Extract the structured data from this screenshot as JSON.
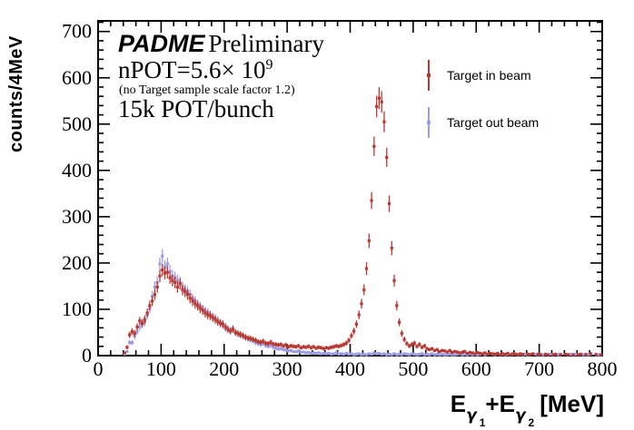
{
  "page": {
    "background": "#ffffff",
    "frame_color": "#000000"
  },
  "annotations": {
    "experiment": "PADME",
    "preliminary": "Preliminary",
    "npot_prefix": "nPOT=5.6× 10",
    "npot_exponent": "9",
    "scale_note": "(no Target sample scale factor 1.2)",
    "pot_per_bunch": "15k POT/bunch"
  },
  "legend": {
    "entries": [
      {
        "label": "Target in beam",
        "color": "#b93a32"
      },
      {
        "label": "Target out beam",
        "color": "#9d9de6"
      }
    ]
  },
  "axes": {
    "y_title": "counts/4MeV",
    "x_title_parts": {
      "e1": "E",
      "g1": "γ",
      "s1": "1",
      "plus": "+E",
      "g2": "γ",
      "s2": "2",
      "unit": "[MeV]"
    },
    "x_ticks": [
      0,
      100,
      200,
      300,
      400,
      500,
      600,
      700,
      800
    ],
    "y_ticks": [
      0,
      100,
      200,
      300,
      400,
      500,
      600,
      700
    ],
    "x_minor_step": 20,
    "y_minor_step": 20
  },
  "chart_data": {
    "type": "scatter",
    "subtype": "histogram-errorbars",
    "title": "",
    "xlabel": "Eγ1+Eγ2 [MeV]",
    "ylabel": "counts/4MeV",
    "xlim": [
      0,
      800
    ],
    "ylim": [
      0,
      723
    ],
    "grid": false,
    "legend_position": "top-right-inside",
    "bin_width": 4,
    "x_start": 42,
    "x_step": 4,
    "series": [
      {
        "name": "Target in beam",
        "color": "#b93a32",
        "values": [
          6,
          18,
          45,
          52,
          48,
          62,
          75,
          70,
          78,
          92,
          108,
          118,
          132,
          148,
          172,
          185,
          178,
          180,
          168,
          162,
          158,
          148,
          155,
          142,
          138,
          132,
          124,
          118,
          112,
          108,
          102,
          98,
          92,
          88,
          86,
          82,
          78,
          73,
          70,
          68,
          62,
          57,
          53,
          57,
          50,
          48,
          46,
          43,
          40,
          38,
          37,
          35,
          33,
          30,
          29,
          31,
          27,
          26,
          29,
          25,
          24,
          23,
          24,
          21,
          23,
          19,
          21,
          20,
          19,
          21,
          17,
          19,
          18,
          20,
          17,
          19,
          16,
          18,
          17,
          15,
          17,
          16,
          18,
          19,
          21,
          20,
          22,
          24,
          27,
          33,
          43,
          53,
          68,
          88,
          112,
          142,
          188,
          248,
          335,
          452,
          538,
          556,
          548,
          505,
          428,
          328,
          232,
          162,
          108,
          72,
          48,
          35,
          26,
          21,
          24,
          27,
          20,
          24,
          18,
          21,
          15,
          13,
          15,
          11,
          13,
          9,
          11,
          10,
          8,
          11,
          7,
          9,
          8,
          6,
          7,
          9,
          5,
          7,
          6,
          4,
          7,
          5,
          4,
          6,
          3,
          5,
          4,
          3,
          5,
          2,
          4,
          3,
          5,
          2,
          4,
          3,
          2,
          4,
          3,
          0,
          3,
          2,
          4,
          0,
          3,
          2,
          0,
          3,
          2,
          0,
          2,
          3,
          0,
          2,
          0,
          3,
          2,
          0,
          2,
          0,
          2,
          3,
          0,
          2,
          0,
          4,
          0,
          2,
          0,
          2
        ]
      },
      {
        "name": "Target out beam",
        "color": "#9d9de6",
        "values": [
          3,
          9,
          28,
          28,
          42,
          52,
          62,
          68,
          72,
          88,
          102,
          128,
          148,
          158,
          198,
          215,
          192,
          198,
          182,
          172,
          168,
          162,
          158,
          148,
          142,
          138,
          132,
          122,
          118,
          110,
          106,
          100,
          96,
          93,
          88,
          83,
          80,
          76,
          71,
          66,
          60,
          56,
          54,
          58,
          50,
          46,
          43,
          42,
          38,
          36,
          34,
          32,
          28,
          26,
          24,
          26,
          22,
          20,
          22,
          18,
          16,
          14,
          15,
          13,
          12,
          10,
          11,
          9,
          8,
          10,
          7,
          8,
          6,
          7,
          5,
          6,
          5,
          6,
          4,
          5,
          4,
          5,
          3,
          4,
          6,
          3,
          4,
          3,
          5,
          3,
          4,
          2,
          3,
          4,
          2,
          3,
          2,
          4,
          3,
          6,
          4,
          5,
          3,
          4,
          2,
          3,
          2,
          4,
          2,
          3,
          2,
          4,
          3,
          2,
          4,
          3,
          2,
          3,
          4,
          2,
          3,
          2,
          4,
          2,
          3,
          2,
          3,
          2,
          2,
          3,
          2,
          2,
          3,
          4,
          2,
          3,
          2,
          4,
          2,
          3,
          2,
          3,
          4,
          2,
          3,
          0,
          3,
          2,
          4,
          2,
          3,
          2,
          3,
          0,
          3,
          4,
          2,
          3,
          2,
          3,
          2,
          3,
          0,
          3,
          2,
          3,
          2,
          3,
          0,
          3,
          2,
          3,
          2,
          3,
          0,
          3,
          2,
          3,
          2,
          3,
          2,
          3,
          2,
          3,
          2,
          3,
          0,
          3,
          2,
          2
        ]
      }
    ]
  }
}
